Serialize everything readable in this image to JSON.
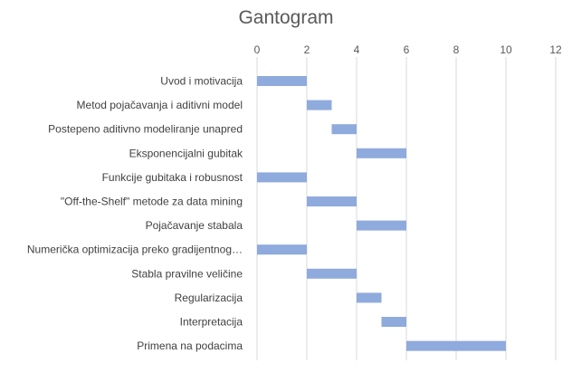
{
  "chart_data": {
    "type": "bar",
    "orientation": "horizontal",
    "stacked": true,
    "title": "Gantogram",
    "xlabel": "",
    "ylabel": "",
    "xlim": [
      0,
      12
    ],
    "x_ticks": [
      "0",
      "2",
      "4",
      "6",
      "8",
      "10",
      "12"
    ],
    "x_axis_position": "top",
    "grid": true,
    "legend": "none",
    "categories": [
      "Uvod i motivacija",
      "Metod pojačavanja i aditivni model",
      "Postepeno aditivno modeliranje unapred",
      "Eksponencijalni gubitak",
      "Funkcije gubitaka i robusnost",
      "\"Off-the-Shelf\" metode za data mining",
      "Pojačavanje stabala",
      "Numerička optimizacija preko gradijentnog…",
      "Stabla pravilne veličine",
      "Regularizacija",
      "Interpretacija",
      "Primena na podacima"
    ],
    "series": [
      {
        "role": "start",
        "visible": false,
        "values": [
          0,
          2,
          3,
          4,
          0,
          2,
          4,
          0,
          2,
          4,
          5,
          6
        ]
      },
      {
        "role": "duration",
        "visible": true,
        "color": "#8faadc",
        "values": [
          2,
          1,
          1,
          2,
          2,
          2,
          2,
          2,
          2,
          1,
          1,
          4
        ]
      }
    ]
  }
}
